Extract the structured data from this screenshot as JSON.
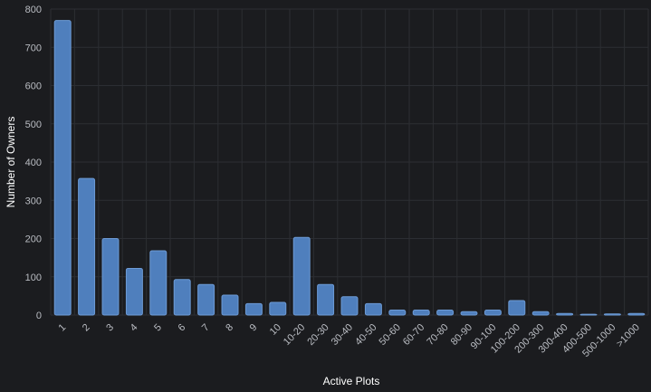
{
  "chart_data": {
    "type": "bar",
    "xlabel": "Active Plots",
    "ylabel": "Number of Owners",
    "ylim": [
      0,
      800
    ],
    "yticks": [
      0,
      100,
      200,
      300,
      400,
      500,
      600,
      700,
      800
    ],
    "grid": true,
    "categories": [
      "1",
      "2",
      "3",
      "4",
      "5",
      "6",
      "7",
      "8",
      "9",
      "10",
      "10-20",
      "20-30",
      "30-40",
      "40-50",
      "50-60",
      "60-70",
      "70-80",
      "80-90",
      "90-100",
      "100-200",
      "200-300",
      "300-400",
      "400-500",
      "500-1000",
      ">1000"
    ],
    "values": [
      770,
      357,
      200,
      122,
      168,
      93,
      80,
      52,
      30,
      33,
      203,
      80,
      48,
      30,
      13,
      13,
      13,
      9,
      13,
      38,
      9,
      4,
      2,
      3,
      4
    ],
    "colors": {
      "bar": "#4f7fbd",
      "bar_edge": "#6d9bd6",
      "background": "#1b1c1f",
      "grid": "#2c2e33",
      "tick_text": "#b9bcc2",
      "title_text": "#ffffff"
    }
  }
}
